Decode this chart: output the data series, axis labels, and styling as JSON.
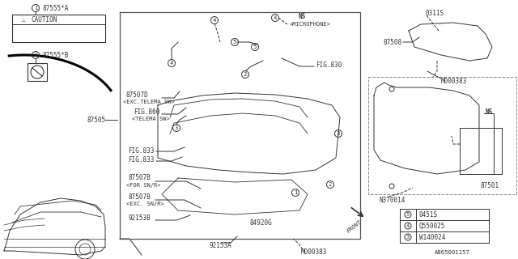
{
  "bg_color": "#ffffff",
  "lc": "#333333",
  "parts": {
    "label1": "87555*A",
    "label2": "87555*B",
    "main": "87505",
    "fig830": "FIG.830",
    "fig860": "FIG.860",
    "fig860b": "<TELEMA SW>",
    "fig833a": "FIG.833",
    "fig833b": "FIG.833",
    "p87507D": "87507D",
    "p87507D_sub": "<EXC.TELEMA SW>",
    "p87507B_snr": "87507B",
    "p87507B_snr_sub": "<FOR SN/R>",
    "p87507B_exc": "87507B",
    "p87507B_exc_sub": "<EXC. SN/R>",
    "p92153B": "92153B",
    "p84920G": "84920G",
    "p92153A": "92153A",
    "m000383_bot": "M000383",
    "p87501": "87501",
    "ns_right": "NS",
    "n370014": "N370014",
    "p87508": "87508",
    "p0311S": "0311S",
    "m000383_right": "M000383",
    "ns_micro": "NS",
    "microphone": "<MICROPHONE>",
    "legend3": "W140024",
    "legend4": "Q550025",
    "legend5": "0451S",
    "front": "FRONT",
    "diagram_id": "A865001157",
    "caution": "CAUTION"
  }
}
